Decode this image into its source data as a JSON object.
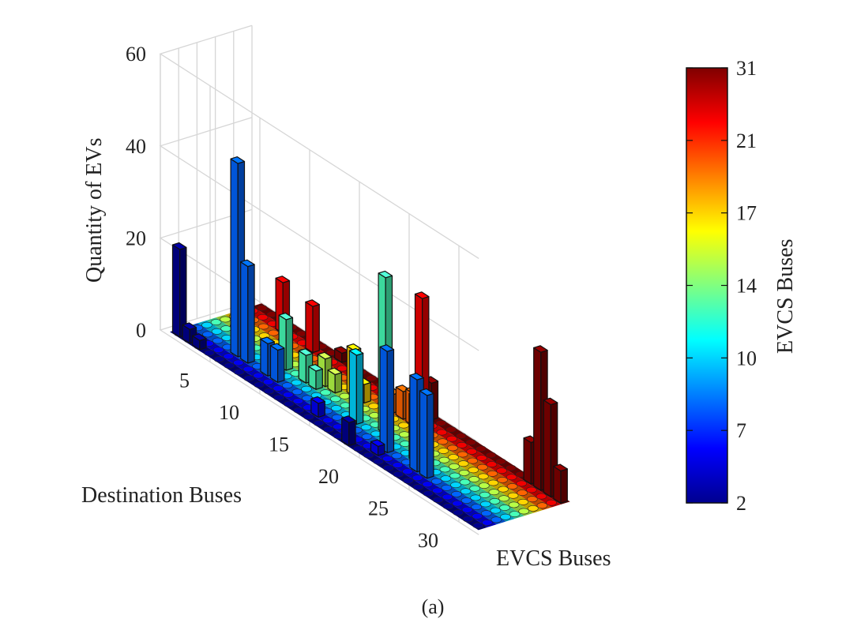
{
  "chart_data": {
    "type": "bar3d",
    "zlabel": "Quantity of EVs",
    "xlabel": "Destination Buses",
    "ylabel": "EVCS Buses",
    "colorbar_label": "EVCS Buses",
    "caption": "(a)",
    "zlim": [
      0,
      60
    ],
    "z_ticks": [
      "0",
      "20",
      "40",
      "60"
    ],
    "x_ticks": [
      "5",
      "10",
      "15",
      "20",
      "25",
      "30"
    ],
    "colorbar_ticks": [
      "2",
      "7",
      "10",
      "14",
      "17",
      "21",
      "31"
    ],
    "evcs_buses": [
      2,
      3,
      6,
      7,
      10,
      12,
      14,
      17,
      21,
      31
    ],
    "series": [
      {
        "evcs": 2,
        "values": [
          [
            1,
            19
          ],
          [
            2,
            3
          ],
          [
            3,
            2
          ],
          [
            18,
            5
          ]
        ]
      },
      {
        "evcs": 3,
        "values": [
          [
            14,
            3
          ],
          [
            20,
            2
          ]
        ]
      },
      {
        "evcs": 6,
        "values": [
          [
            5,
            42
          ],
          [
            6,
            21
          ],
          [
            8,
            7
          ],
          [
            9,
            7
          ],
          [
            20,
            22
          ],
          [
            23,
            20
          ],
          [
            24,
            18
          ]
        ]
      },
      {
        "evcs": 7,
        "values": [
          [
            16,
            15
          ],
          [
            22,
            14
          ]
        ]
      },
      {
        "evcs": 10,
        "values": [
          [
            8,
            11
          ],
          [
            10,
            6
          ],
          [
            11,
            4
          ],
          [
            18,
            34
          ]
        ]
      },
      {
        "evcs": 12,
        "values": [
          [
            11,
            6
          ],
          [
            12,
            4
          ]
        ]
      },
      {
        "evcs": 14,
        "values": [
          [
            13,
            10
          ],
          [
            14,
            4
          ]
        ]
      },
      {
        "evcs": 17,
        "values": [
          [
            16,
            4
          ],
          [
            17,
            6
          ],
          [
            18,
            7
          ]
        ]
      },
      {
        "evcs": 21,
        "values": [
          [
            4,
            11
          ],
          [
            7,
            10
          ],
          [
            18,
            27
          ]
        ]
      },
      {
        "evcs": 31,
        "values": [
          [
            9,
            2
          ],
          [
            18,
            8
          ],
          [
            28,
            9
          ],
          [
            29,
            30
          ],
          [
            30,
            20
          ],
          [
            31,
            7
          ]
        ]
      }
    ],
    "colormap": [
      "#00008f",
      "#0000ff",
      "#0080ff",
      "#00ffff",
      "#80ff80",
      "#ffff00",
      "#ff8000",
      "#ff0000",
      "#800000"
    ]
  }
}
